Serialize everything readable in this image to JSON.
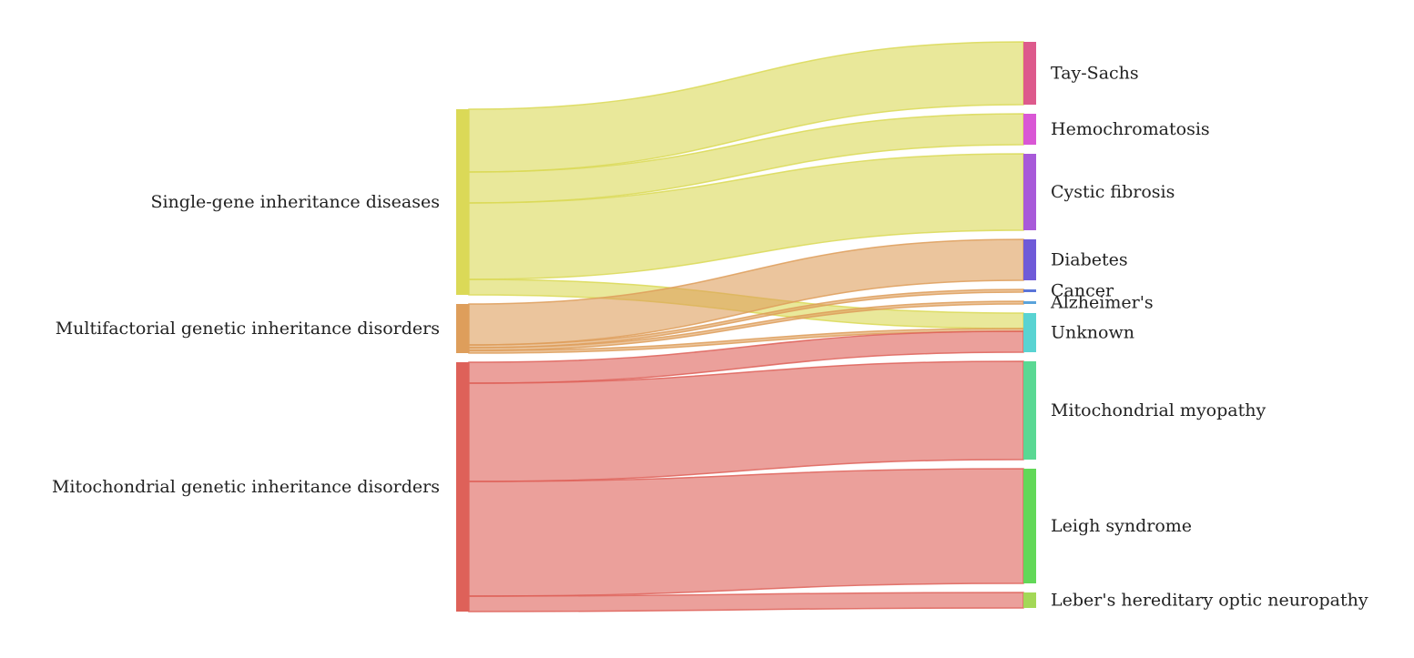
{
  "chart_data": {
    "type": "sankey",
    "sources": [
      {
        "id": "single",
        "label": "Single-gene inheritance diseases",
        "color": "#dbd957"
      },
      {
        "id": "multi",
        "label": "Multifactorial genetic inheritance disorders",
        "color": "#de9e5b"
      },
      {
        "id": "mito",
        "label": "Mitochondrial genetic inheritance disorders",
        "color": "#de6159"
      }
    ],
    "targets": [
      {
        "id": "tay",
        "label": "Tay-Sachs",
        "color": "#dd5a8c"
      },
      {
        "id": "hemo",
        "label": "Hemochromatosis",
        "color": "#d957d5"
      },
      {
        "id": "cf",
        "label": "Cystic fibrosis",
        "color": "#a85ad9"
      },
      {
        "id": "diab",
        "label": "Diabetes",
        "color": "#6f5ad8"
      },
      {
        "id": "cancer",
        "label": "Cancer",
        "color": "#5a74d8"
      },
      {
        "id": "alz",
        "label": "Alzheimer's",
        "color": "#5aa3db"
      },
      {
        "id": "unknown",
        "label": "Unknown",
        "color": "#59d3d2"
      },
      {
        "id": "mitomyo",
        "label": "Mitochondrial myopathy",
        "color": "#5ad893"
      },
      {
        "id": "leigh",
        "label": "Leigh syndrome",
        "color": "#62d858"
      },
      {
        "id": "leber",
        "label": "Leber's hereditary optic neuropathy",
        "color": "#a3d857"
      }
    ],
    "links": [
      {
        "source": "single",
        "target": "tay",
        "value": 69
      },
      {
        "source": "single",
        "target": "hemo",
        "value": 34
      },
      {
        "source": "single",
        "target": "cf",
        "value": 84
      },
      {
        "source": "single",
        "target": "unknown",
        "value": 17
      },
      {
        "source": "multi",
        "target": "diab",
        "value": 45
      },
      {
        "source": "multi",
        "target": "cancer",
        "value": 3
      },
      {
        "source": "multi",
        "target": "alz",
        "value": 3
      },
      {
        "source": "multi",
        "target": "unknown",
        "value": 3
      },
      {
        "source": "mito",
        "target": "unknown",
        "value": 23
      },
      {
        "source": "mito",
        "target": "mitomyo",
        "value": 108
      },
      {
        "source": "mito",
        "target": "leigh",
        "value": 126
      },
      {
        "source": "mito",
        "target": "leber",
        "value": 17
      }
    ]
  }
}
